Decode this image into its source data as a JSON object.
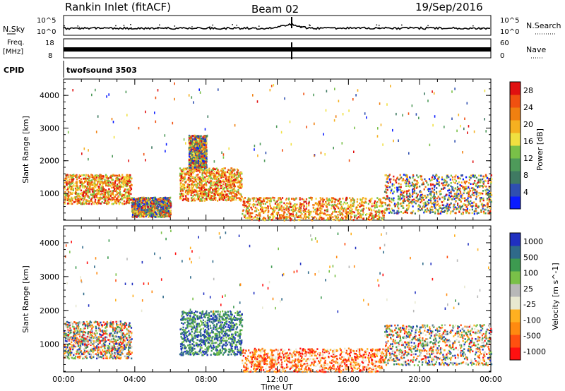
{
  "header": {
    "title": "Rankin Inlet (fitACF)",
    "beam": "Beam 02",
    "date": "19/Sep/2016"
  },
  "top_panels": {
    "nsky_label": "N.Sky",
    "nsky_ticks": [
      "10^5",
      "10^0"
    ],
    "nsearch_label": "N.Search",
    "nsearch_ticks": [
      "10^5",
      "10^0"
    ],
    "freq_label": "Freq.",
    "freq_unit": "[MHz]",
    "freq_ticks": [
      "18",
      "8"
    ],
    "nave_label": "Nave",
    "nave_ticks": [
      "60",
      "0"
    ],
    "cpid_label": "CPID",
    "cpid_value": "twofsound 3503"
  },
  "colors": {
    "power": [
      "#0a1cff",
      "#2f4fb0",
      "#3f7a62",
      "#4e9a5a",
      "#79c048",
      "#f0e040",
      "#f5b020",
      "#f08010",
      "#f05010",
      "#e01010"
    ],
    "velocity": [
      "#ff1010",
      "#ff5010",
      "#ff8a10",
      "#ffb020",
      "#e8e8d0",
      "#b8b8b8",
      "#79c048",
      "#3d9a50",
      "#2f6a8a",
      "#2030c0"
    ]
  },
  "chart_data": [
    {
      "type": "heatmap",
      "title": "",
      "xlabel": "",
      "ylabel": "Slant Range [km]",
      "x_ticks": [
        "00:00",
        "04:00",
        "08:00",
        "12:00",
        "16:00",
        "20:00",
        "00:00"
      ],
      "x_range_hours": [
        0,
        24
      ],
      "y_ticks": [
        1000,
        2000,
        3000,
        4000
      ],
      "ylim": [
        180,
        4500
      ],
      "colorbar": {
        "label": "Power [dB]",
        "ticks": [
          4,
          8,
          12,
          16,
          20,
          24,
          28
        ],
        "range": [
          0,
          30
        ]
      },
      "scatter_regions_hours_km": [
        {
          "t": [
            0,
            3.8
          ],
          "r": [
            700,
            1600
          ],
          "level": "high"
        },
        {
          "t": [
            3.8,
            6
          ],
          "r": [
            300,
            900
          ],
          "level": "mixed"
        },
        {
          "t": [
            6.5,
            10
          ],
          "r": [
            800,
            1800
          ],
          "level": "high"
        },
        {
          "t": [
            7,
            8
          ],
          "r": [
            1800,
            2800
          ],
          "level": "mixed"
        },
        {
          "t": [
            10,
            18
          ],
          "r": [
            200,
            900
          ],
          "level": "high"
        },
        {
          "t": [
            18,
            24
          ],
          "r": [
            400,
            1600
          ],
          "level": "mixed"
        }
      ]
    },
    {
      "type": "heatmap",
      "title": "",
      "xlabel": "Time UT",
      "ylabel": "Slant Range [km]",
      "x_ticks": [
        "00:00",
        "04:00",
        "08:00",
        "12:00",
        "16:00",
        "20:00",
        "00:00"
      ],
      "x_range_hours": [
        0,
        24
      ],
      "y_ticks": [
        1000,
        2000,
        3000,
        4000
      ],
      "ylim": [
        180,
        4500
      ],
      "colorbar": {
        "label": "Velocity [m s^-1]",
        "ticks": [
          "1000",
          "500",
          "100",
          "25",
          "-25",
          "-100",
          "-500",
          "-1000"
        ]
      },
      "scatter_regions_hours_km": [
        {
          "t": [
            0,
            3.8
          ],
          "r": [
            600,
            1700
          ],
          "level": "mixed"
        },
        {
          "t": [
            6.5,
            10
          ],
          "r": [
            700,
            2000
          ],
          "level": "positive"
        },
        {
          "t": [
            10,
            18
          ],
          "r": [
            200,
            900
          ],
          "level": "negative"
        },
        {
          "t": [
            18,
            24
          ],
          "r": [
            400,
            1600
          ],
          "level": "mixed"
        }
      ]
    }
  ]
}
